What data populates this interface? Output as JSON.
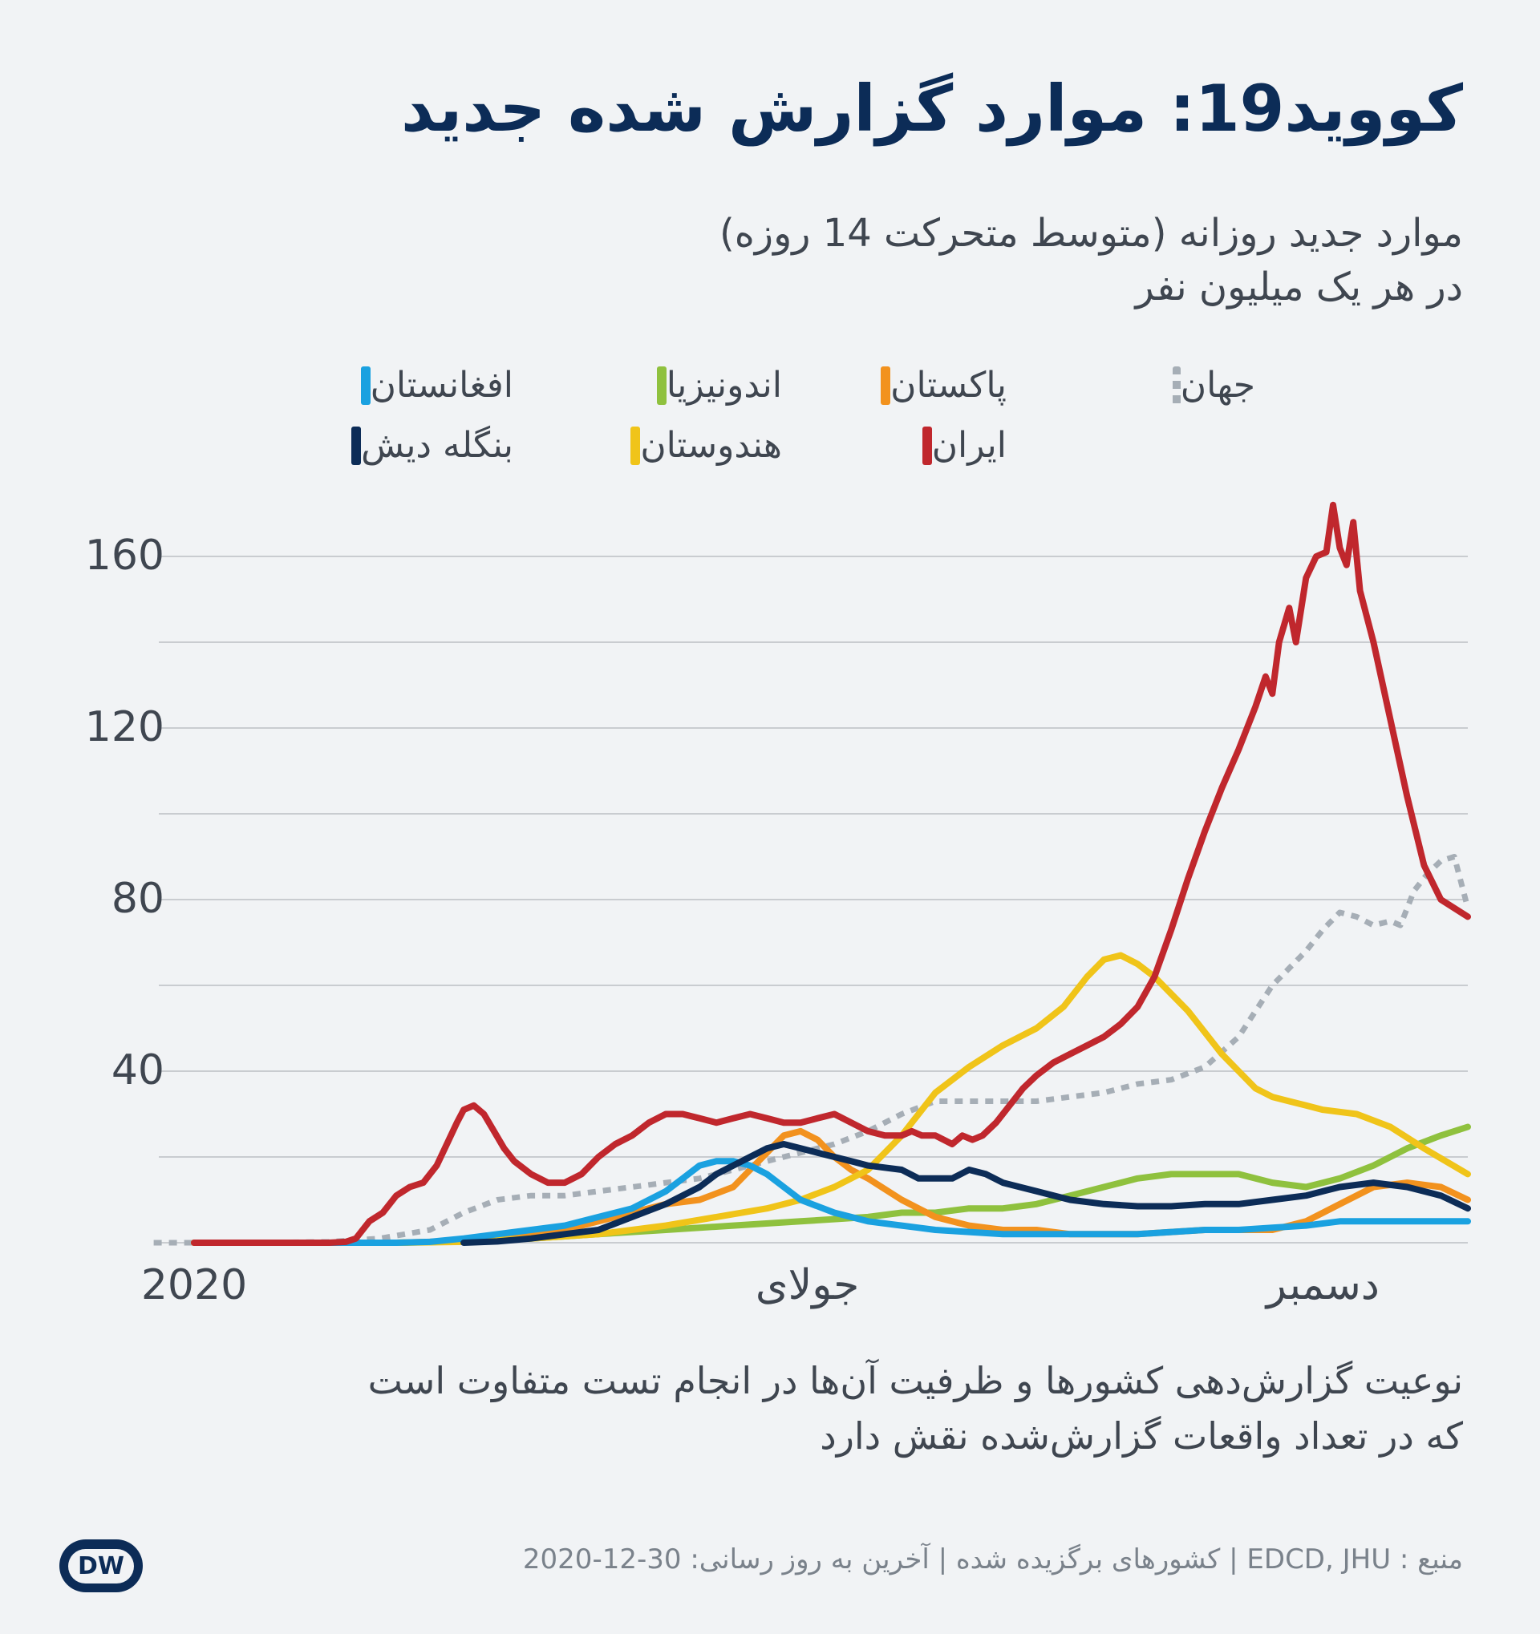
{
  "title": "کووید19: موارد گزارش شده جدید",
  "subtitle": {
    "line1": "موارد جدید روزانه (متوسط متحرکت 14 روزه)",
    "line2": "در هر یک میلیون نفر"
  },
  "note": {
    "line1": "نوعیت گزارش‌دهی کشورها و ظرفیت آن‌ها در انجام تست متفاوت است",
    "line2": "که در تعداد واقعات گزارش‌شده نقش دارد"
  },
  "source": "منبع : EDCD, JHU | کشورهای برگزیده شده | آخرین به روز رسانی: 30-12-2020",
  "logo": "DW",
  "chart_data": {
    "type": "line",
    "title": "کووید19: موارد گزارش شده جدید",
    "ylabel": "موارد جدید روزانه (متوسط متحرکت 14 روزه) در هر یک میلیون نفر",
    "ylim": [
      0,
      175
    ],
    "yticks": [
      40,
      80,
      120,
      160
    ],
    "grid": true,
    "legend_placement": "top",
    "xlim": [
      0,
      365
    ],
    "xticks": [
      {
        "x": 0,
        "label": "2020"
      },
      {
        "x": 182,
        "label": "جولای"
      },
      {
        "x": 335,
        "label": "دسمبر"
      }
    ],
    "x_unit": "day of year 2020",
    "series": [
      {
        "name": "جهان",
        "color": "#a6aeb6",
        "style": "dotted",
        "points": [
          [
            -12,
            0
          ],
          [
            0,
            0
          ],
          [
            20,
            0
          ],
          [
            40,
            0.2
          ],
          [
            55,
            1
          ],
          [
            70,
            3
          ],
          [
            80,
            7
          ],
          [
            90,
            10
          ],
          [
            100,
            11
          ],
          [
            110,
            11
          ],
          [
            120,
            12
          ],
          [
            130,
            13
          ],
          [
            140,
            14
          ],
          [
            150,
            15
          ],
          [
            160,
            17
          ],
          [
            170,
            19
          ],
          [
            180,
            21
          ],
          [
            190,
            23
          ],
          [
            200,
            26
          ],
          [
            210,
            30
          ],
          [
            220,
            33
          ],
          [
            230,
            33
          ],
          [
            240,
            33
          ],
          [
            250,
            33
          ],
          [
            260,
            34
          ],
          [
            270,
            35
          ],
          [
            280,
            37
          ],
          [
            290,
            38
          ],
          [
            300,
            41
          ],
          [
            310,
            48
          ],
          [
            320,
            60
          ],
          [
            330,
            68
          ],
          [
            335,
            73
          ],
          [
            340,
            77
          ],
          [
            345,
            76
          ],
          [
            350,
            74
          ],
          [
            355,
            75
          ],
          [
            358,
            74
          ],
          [
            362,
            82
          ],
          [
            366,
            86
          ],
          [
            370,
            89
          ],
          [
            374,
            90
          ],
          [
            378,
            78
          ]
        ]
      },
      {
        "name": "پاکستان",
        "color": "#f2921e",
        "points": [
          [
            0,
            0
          ],
          [
            60,
            0
          ],
          [
            70,
            0.2
          ],
          [
            80,
            0.5
          ],
          [
            90,
            1
          ],
          [
            100,
            2
          ],
          [
            110,
            3
          ],
          [
            120,
            5
          ],
          [
            130,
            7
          ],
          [
            140,
            9
          ],
          [
            150,
            10
          ],
          [
            160,
            13
          ],
          [
            165,
            17
          ],
          [
            170,
            21
          ],
          [
            175,
            25
          ],
          [
            180,
            26
          ],
          [
            185,
            24
          ],
          [
            190,
            20
          ],
          [
            195,
            17
          ],
          [
            200,
            15
          ],
          [
            210,
            10
          ],
          [
            220,
            6
          ],
          [
            230,
            4
          ],
          [
            240,
            3
          ],
          [
            250,
            3
          ],
          [
            260,
            2
          ],
          [
            270,
            2
          ],
          [
            280,
            2
          ],
          [
            290,
            2.5
          ],
          [
            300,
            3
          ],
          [
            310,
            3
          ],
          [
            320,
            3
          ],
          [
            330,
            5
          ],
          [
            340,
            9
          ],
          [
            350,
            13
          ],
          [
            360,
            14
          ],
          [
            370,
            13
          ],
          [
            378,
            10
          ]
        ]
      },
      {
        "name": "ایران",
        "color": "#c0272d",
        "points": [
          [
            0,
            0
          ],
          [
            20,
            0
          ],
          [
            40,
            0
          ],
          [
            45,
            0.2
          ],
          [
            48,
            1
          ],
          [
            52,
            5
          ],
          [
            56,
            7
          ],
          [
            60,
            11
          ],
          [
            64,
            13
          ],
          [
            68,
            14
          ],
          [
            72,
            18
          ],
          [
            75,
            23
          ],
          [
            78,
            28
          ],
          [
            80,
            31
          ],
          [
            83,
            32
          ],
          [
            86,
            30
          ],
          [
            89,
            26
          ],
          [
            92,
            22
          ],
          [
            95,
            19
          ],
          [
            100,
            16
          ],
          [
            105,
            14
          ],
          [
            110,
            14
          ],
          [
            115,
            16
          ],
          [
            120,
            20
          ],
          [
            125,
            23
          ],
          [
            130,
            25
          ],
          [
            135,
            28
          ],
          [
            140,
            30
          ],
          [
            145,
            30
          ],
          [
            150,
            29
          ],
          [
            155,
            28
          ],
          [
            160,
            29
          ],
          [
            165,
            30
          ],
          [
            170,
            29
          ],
          [
            175,
            28
          ],
          [
            180,
            28
          ],
          [
            185,
            29
          ],
          [
            190,
            30
          ],
          [
            195,
            28
          ],
          [
            200,
            26
          ],
          [
            205,
            25
          ],
          [
            210,
            25
          ],
          [
            213,
            26
          ],
          [
            216,
            25
          ],
          [
            220,
            25
          ],
          [
            225,
            23
          ],
          [
            228,
            25
          ],
          [
            231,
            24
          ],
          [
            234,
            25
          ],
          [
            238,
            28
          ],
          [
            242,
            32
          ],
          [
            246,
            36
          ],
          [
            250,
            39
          ],
          [
            255,
            42
          ],
          [
            260,
            44
          ],
          [
            265,
            46
          ],
          [
            270,
            48
          ],
          [
            275,
            51
          ],
          [
            280,
            55
          ],
          [
            285,
            62
          ],
          [
            290,
            73
          ],
          [
            295,
            85
          ],
          [
            300,
            96
          ],
          [
            305,
            106
          ],
          [
            310,
            115
          ],
          [
            315,
            125
          ],
          [
            318,
            132
          ],
          [
            320,
            128
          ],
          [
            322,
            140
          ],
          [
            325,
            148
          ],
          [
            327,
            140
          ],
          [
            330,
            155
          ],
          [
            333,
            160
          ],
          [
            336,
            161
          ],
          [
            338,
            172
          ],
          [
            340,
            162
          ],
          [
            342,
            158
          ],
          [
            344,
            168
          ],
          [
            346,
            152
          ],
          [
            350,
            140
          ],
          [
            355,
            122
          ],
          [
            360,
            104
          ],
          [
            365,
            88
          ],
          [
            370,
            80
          ],
          [
            378,
            76
          ]
        ]
      },
      {
        "name": "اندونیزیا",
        "color": "#8fc13e",
        "points": [
          [
            0,
            0
          ],
          [
            40,
            0
          ],
          [
            60,
            0
          ],
          [
            80,
            0.3
          ],
          [
            100,
            1
          ],
          [
            120,
            2
          ],
          [
            140,
            3
          ],
          [
            160,
            4
          ],
          [
            180,
            5
          ],
          [
            200,
            6
          ],
          [
            210,
            7
          ],
          [
            220,
            7
          ],
          [
            230,
            8
          ],
          [
            240,
            8
          ],
          [
            250,
            9
          ],
          [
            260,
            11
          ],
          [
            270,
            13
          ],
          [
            280,
            15
          ],
          [
            290,
            16
          ],
          [
            300,
            16
          ],
          [
            310,
            16
          ],
          [
            315,
            15
          ],
          [
            320,
            14
          ],
          [
            330,
            13
          ],
          [
            340,
            15
          ],
          [
            350,
            18
          ],
          [
            360,
            22
          ],
          [
            370,
            25
          ],
          [
            378,
            27
          ]
        ]
      },
      {
        "name": "هندوستان",
        "color": "#f0c419",
        "points": [
          [
            0,
            0
          ],
          [
            60,
            0
          ],
          [
            80,
            0.2
          ],
          [
            100,
            1
          ],
          [
            120,
            2
          ],
          [
            140,
            4
          ],
          [
            155,
            6
          ],
          [
            170,
            8
          ],
          [
            180,
            10
          ],
          [
            190,
            13
          ],
          [
            200,
            17
          ],
          [
            210,
            25
          ],
          [
            220,
            35
          ],
          [
            230,
            41
          ],
          [
            240,
            46
          ],
          [
            250,
            50
          ],
          [
            258,
            55
          ],
          [
            265,
            62
          ],
          [
            270,
            66
          ],
          [
            275,
            67
          ],
          [
            280,
            65
          ],
          [
            285,
            62
          ],
          [
            290,
            58
          ],
          [
            295,
            54
          ],
          [
            300,
            49
          ],
          [
            305,
            44
          ],
          [
            310,
            40
          ],
          [
            315,
            36
          ],
          [
            320,
            34
          ],
          [
            325,
            33
          ],
          [
            330,
            32
          ],
          [
            335,
            31
          ],
          [
            345,
            30
          ],
          [
            355,
            27
          ],
          [
            365,
            22
          ],
          [
            378,
            16
          ]
        ]
      },
      {
        "name": "افغانستان",
        "color": "#1aa1e0",
        "points": [
          [
            40,
            0
          ],
          [
            60,
            0
          ],
          [
            70,
            0.2
          ],
          [
            80,
            1
          ],
          [
            90,
            2
          ],
          [
            100,
            3
          ],
          [
            110,
            4
          ],
          [
            120,
            6
          ],
          [
            130,
            8
          ],
          [
            140,
            12
          ],
          [
            145,
            15
          ],
          [
            150,
            18
          ],
          [
            155,
            19
          ],
          [
            160,
            19
          ],
          [
            165,
            18
          ],
          [
            170,
            16
          ],
          [
            175,
            13
          ],
          [
            180,
            10
          ],
          [
            190,
            7
          ],
          [
            200,
            5
          ],
          [
            210,
            4
          ],
          [
            220,
            3
          ],
          [
            230,
            2.5
          ],
          [
            240,
            2
          ],
          [
            250,
            2
          ],
          [
            260,
            2
          ],
          [
            270,
            2
          ],
          [
            280,
            2
          ],
          [
            290,
            2.5
          ],
          [
            300,
            3
          ],
          [
            310,
            3
          ],
          [
            320,
            3.5
          ],
          [
            330,
            4
          ],
          [
            340,
            5
          ],
          [
            350,
            5
          ],
          [
            360,
            5
          ],
          [
            370,
            5
          ],
          [
            378,
            5
          ]
        ]
      },
      {
        "name": "بنگله دیش",
        "color": "#0c2c57",
        "points": [
          [
            80,
            0
          ],
          [
            90,
            0.3
          ],
          [
            100,
            1
          ],
          [
            110,
            2
          ],
          [
            120,
            3
          ],
          [
            130,
            6
          ],
          [
            140,
            9
          ],
          [
            150,
            13
          ],
          [
            155,
            16
          ],
          [
            160,
            18
          ],
          [
            165,
            20
          ],
          [
            170,
            22
          ],
          [
            175,
            23
          ],
          [
            180,
            22
          ],
          [
            185,
            21
          ],
          [
            190,
            20
          ],
          [
            195,
            19
          ],
          [
            200,
            18
          ],
          [
            210,
            17
          ],
          [
            215,
            15
          ],
          [
            220,
            15
          ],
          [
            225,
            15
          ],
          [
            230,
            17
          ],
          [
            235,
            16
          ],
          [
            240,
            14
          ],
          [
            250,
            12
          ],
          [
            260,
            10
          ],
          [
            270,
            9
          ],
          [
            280,
            8.5
          ],
          [
            290,
            8.5
          ],
          [
            300,
            9
          ],
          [
            310,
            9
          ],
          [
            320,
            10
          ],
          [
            330,
            11
          ],
          [
            340,
            13
          ],
          [
            350,
            14
          ],
          [
            360,
            13
          ],
          [
            370,
            11
          ],
          [
            378,
            8
          ]
        ]
      }
    ]
  }
}
